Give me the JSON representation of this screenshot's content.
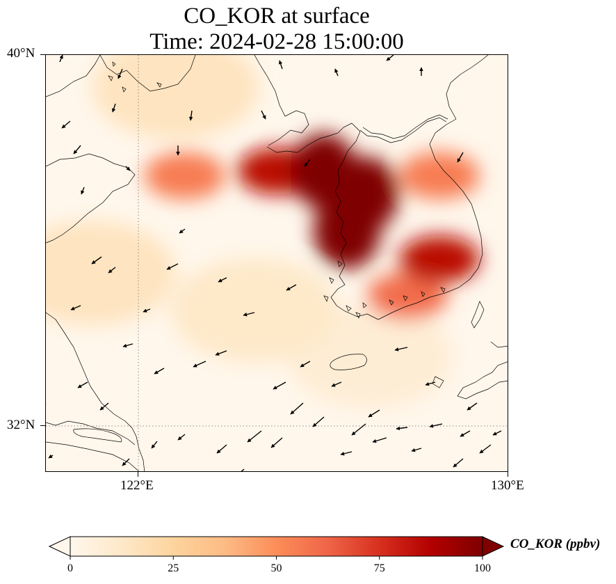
{
  "title": {
    "line1": "CO_KOR at surface",
    "line2": "Time: 2024-02-28 15:00:00"
  },
  "axes": {
    "lat_ticks": [
      {
        "label": "40°N",
        "value": 40
      },
      {
        "label": "32°N",
        "value": 32
      }
    ],
    "lon_ticks": [
      {
        "label": "122°E",
        "value": 122
      },
      {
        "label": "130°E",
        "value": 130
      }
    ],
    "extent": {
      "lon_min": 120,
      "lon_max": 130,
      "lat_min": 31,
      "lat_max": 40
    },
    "gridlines": "dotted at 122°E and 32°N"
  },
  "colorbar": {
    "label": "CO_KOR (ppbv)",
    "ticks": [
      "0",
      "25",
      "50",
      "75",
      "100"
    ],
    "range": [
      0,
      100
    ],
    "extend": "both",
    "colormap": [
      "#fff7ec",
      "#fee8c8",
      "#fdd49e",
      "#fdbb84",
      "#fc8d59",
      "#ef6548",
      "#d7301f",
      "#b30000",
      "#7f0000"
    ]
  },
  "colors": {
    "background": "#fff7ec",
    "coastline": "#000000",
    "arrows": "#000000",
    "gridline": "#888888"
  },
  "chart_data": {
    "type": "heatmap",
    "variable": "CO_KOR",
    "units": "ppbv",
    "level": "surface",
    "time": "2024-02-28 15:00:00",
    "overlay": "wind vectors",
    "plumes": [
      {
        "lon": 126.0,
        "lat": 37.5,
        "value": 100
      },
      {
        "lon": 126.9,
        "lat": 37.0,
        "value": 100
      },
      {
        "lon": 126.5,
        "lat": 36.2,
        "value": 100
      },
      {
        "lon": 125.0,
        "lat": 37.5,
        "value": 85
      },
      {
        "lon": 123.0,
        "lat": 37.4,
        "value": 55
      },
      {
        "lon": 128.5,
        "lat": 35.6,
        "value": 85
      },
      {
        "lon": 127.8,
        "lat": 34.8,
        "value": 60
      },
      {
        "lon": 128.5,
        "lat": 37.4,
        "value": 55
      },
      {
        "lon": 121.0,
        "lat": 35.3,
        "value": 15
      },
      {
        "lon": 122.8,
        "lat": 39.3,
        "value": 15
      },
      {
        "lon": 124.5,
        "lat": 34.5,
        "value": 12
      },
      {
        "lon": 127.0,
        "lat": 33.5,
        "value": 8
      }
    ]
  }
}
